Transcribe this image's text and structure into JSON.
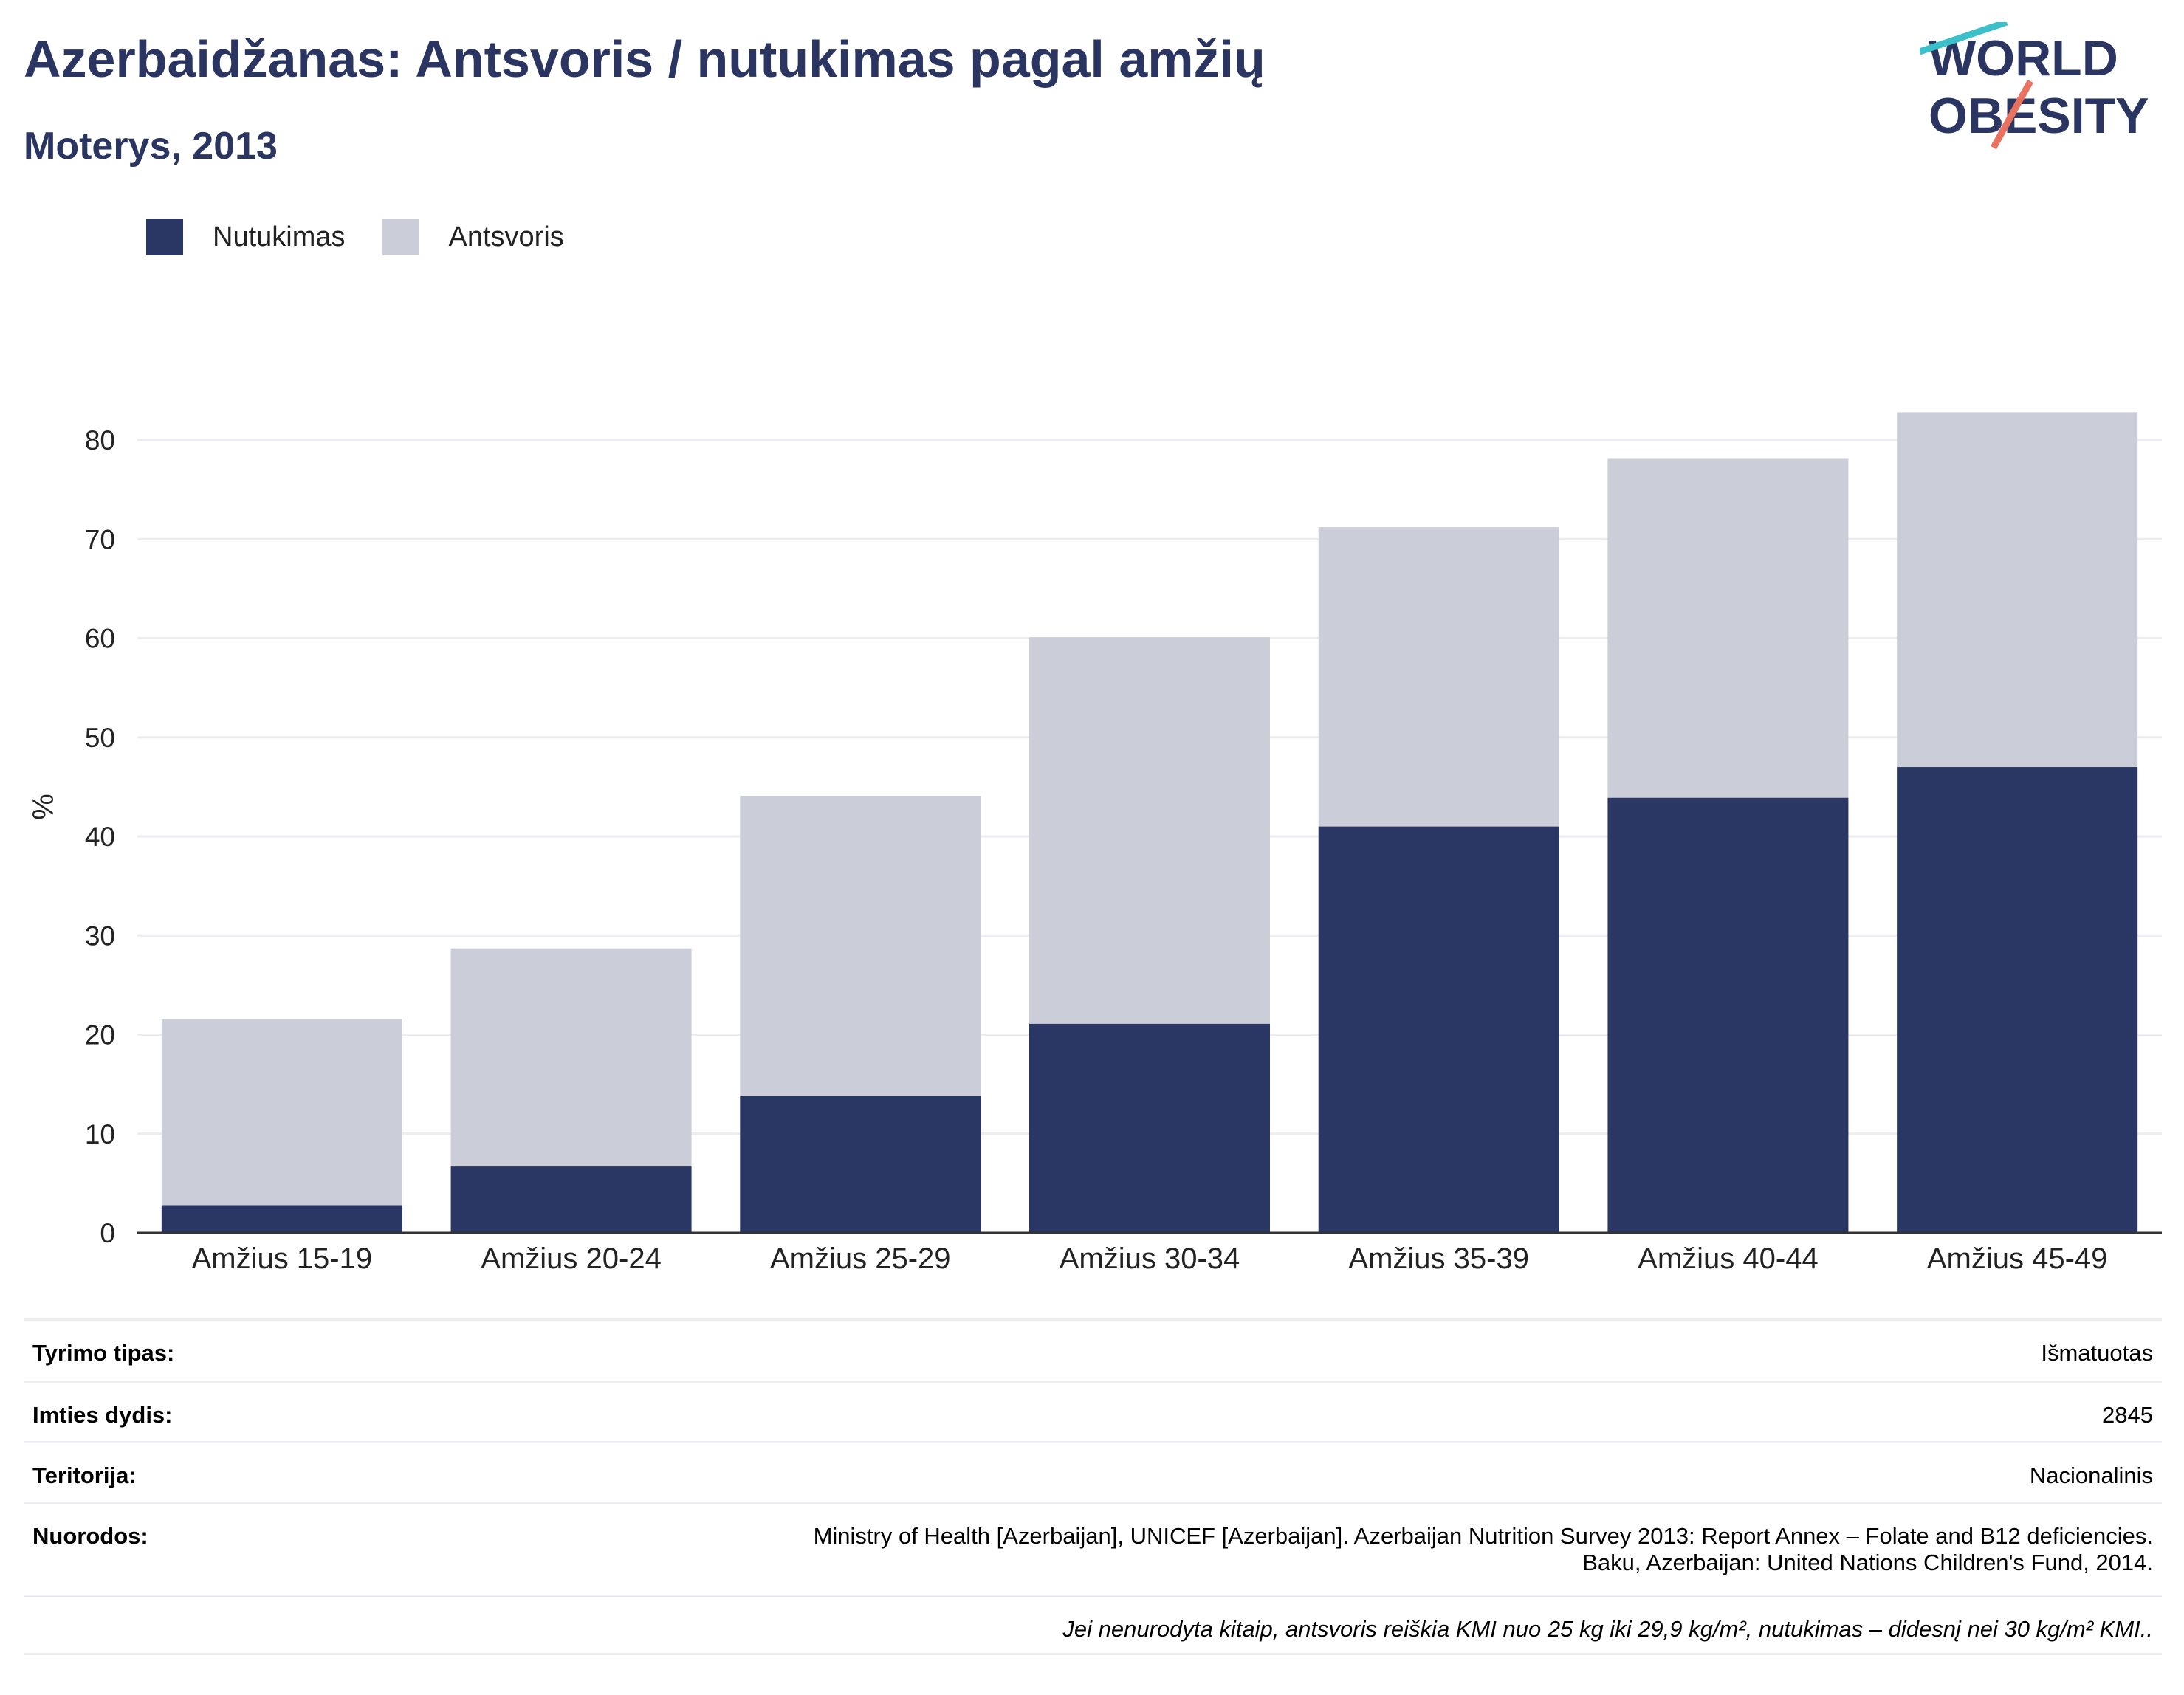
{
  "header": {
    "title": "Azerbaidžanas: Antsvoris / nutukimas pagal amžių",
    "subtitle": "Moterys, 2013"
  },
  "logo": {
    "line1": "WORLD",
    "line2": "OBESITY",
    "accent_teal": "#3bbfc9",
    "accent_coral": "#e9715f"
  },
  "legend": [
    {
      "label": "Nutukimas",
      "color": "#2a3663"
    },
    {
      "label": "Antsvoris",
      "color": "#cbcdd8"
    }
  ],
  "chart_data": {
    "type": "bar",
    "stacked": true,
    "categories": [
      "Amžius 15-19",
      "Amžius 20-24",
      "Amžius 25-29",
      "Amžius 30-34",
      "Amžius 35-39",
      "Amžius 40-44",
      "Amžius 45-49"
    ],
    "series": [
      {
        "name": "Nutukimas",
        "values": [
          2.8,
          6.7,
          13.8,
          21.1,
          41.0,
          43.9,
          47.0
        ],
        "color": "#2a3663"
      },
      {
        "name": "Antsvoris",
        "values": [
          18.8,
          22.0,
          30.3,
          39.0,
          30.2,
          34.2,
          35.8
        ],
        "color": "#cbcdd8"
      }
    ],
    "ylabel": "%",
    "ylim": [
      0,
      85
    ],
    "yticks": [
      0,
      10,
      20,
      30,
      40,
      50,
      60,
      70,
      80
    ],
    "grid": true,
    "legend_position": "top-left"
  },
  "info": {
    "rows": [
      {
        "key": "Tyrimo tipas:",
        "value": "Išmatuotas"
      },
      {
        "key": "Imties dydis:",
        "value": "2845"
      },
      {
        "key": "Teritorija:",
        "value": "Nacionalinis"
      },
      {
        "key": "Nuorodos:",
        "value": "Ministry of Health [Azerbaijan], UNICEF [Azerbaijan]. Azerbaijan Nutrition Survey 2013: Report Annex – Folate and B12 deficiencies.",
        "value2": "Baku, Azerbaijan: United Nations Children's Fund, 2014."
      }
    ],
    "note": "Jei nenurodyta kitaip, antsvoris reiškia KMI nuo 25 kg iki 29,9 kg/m², nutukimas – didesnį nei 30 kg/m² KMI.."
  }
}
